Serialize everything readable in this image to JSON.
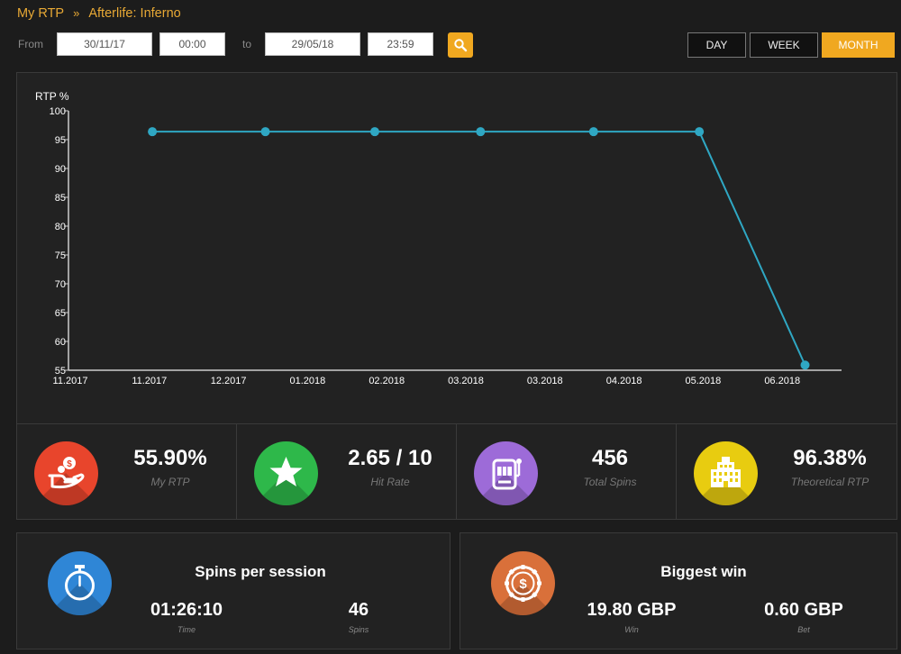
{
  "breadcrumb": {
    "root": "My RTP",
    "separator": "»",
    "current": "Afterlife: Inferno"
  },
  "filter": {
    "from_label": "From",
    "from_date": "30/11/17",
    "from_time": "00:00",
    "to_label": "to",
    "to_date": "29/05/18",
    "to_time": "23:59"
  },
  "period_buttons": {
    "day": "DAY",
    "week": "WEEK",
    "month": "MONTH",
    "active": "month"
  },
  "colors": {
    "accent": "#f0a820",
    "line": "#2fa7c3",
    "myrtp": "#e8452c",
    "hitrate": "#2eb84a",
    "spins": "#9d6bd8",
    "theoretical": "#e8cc10",
    "session": "#2f86d6",
    "bigwin": "#d9703a"
  },
  "chart_data": {
    "type": "line",
    "ylabel": "RTP %",
    "xlabel": "",
    "title": "",
    "ylim": [
      55,
      100
    ],
    "yticks": [
      100,
      95,
      90,
      85,
      80,
      75,
      70,
      65,
      60,
      55
    ],
    "xlim": [
      "2017-11",
      "2018-06"
    ],
    "x_tick_labels": [
      "11.2017",
      "11.2017",
      "12.2017",
      "01.2018",
      "02.2018",
      "03.2018",
      "03.2018",
      "04.2018",
      "05.2018",
      "06.2018"
    ],
    "series": [
      {
        "x": [
          "2017-11-24",
          "2017-12-25",
          "2018-01-24",
          "2018-02-22",
          "2018-03-25",
          "2018-04-23",
          "2018-05-22"
        ],
        "y": [
          96.38,
          96.38,
          96.38,
          96.38,
          96.38,
          96.38,
          55.9
        ]
      }
    ]
  },
  "stats": [
    {
      "value": "55.90%",
      "label": "My RTP",
      "icon": "money-hand-icon"
    },
    {
      "value": "2.65 / 10",
      "label": "Hit Rate",
      "icon": "star-icon"
    },
    {
      "value": "456",
      "label": "Total Spins",
      "icon": "slot-machine-icon"
    },
    {
      "value": "96.38%",
      "label": "Theoretical RTP",
      "icon": "casino-building-icon"
    }
  ],
  "session": {
    "title": "Spins per session",
    "time_value": "01:26:10",
    "time_label": "Time",
    "spins_value": "46",
    "spins_label": "Spins",
    "icon": "stopwatch-icon"
  },
  "biggest_win": {
    "title": "Biggest win",
    "win_value": "19.80 GBP",
    "win_label": "Win",
    "bet_value": "0.60 GBP",
    "bet_label": "Bet",
    "icon": "casino-chip-icon"
  }
}
